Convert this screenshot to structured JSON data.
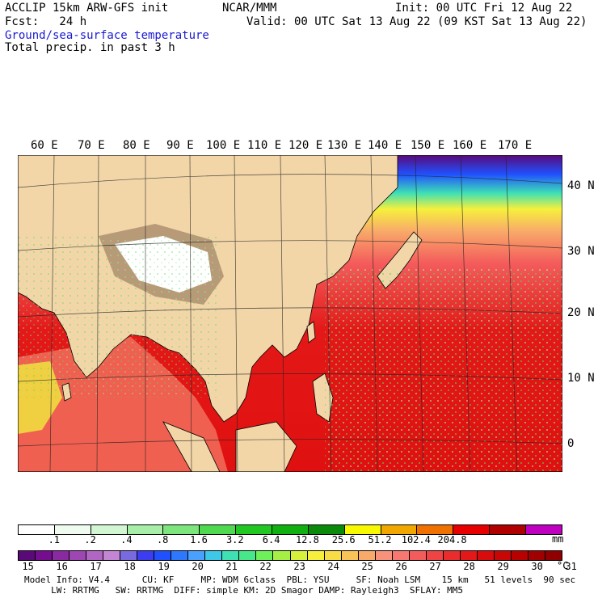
{
  "header": {
    "model": "ACCLIP 15km ARW-GFS init",
    "org": "NCAR/MMM",
    "init": "Init: 00 UTC Fri 12 Aug 22",
    "fcst": "Fcst:   24 h",
    "valid": "Valid: 00 UTC Sat 13 Aug 22 (09 KST Sat 13 Aug 22)",
    "field1": "Ground/sea-surface temperature",
    "field2": "Total precip. in past 3 h"
  },
  "map": {
    "lon_labels": [
      "60 E",
      "70 E",
      "80 E",
      "90 E",
      "100 E",
      "110 E",
      "120 E",
      "130 E",
      "140 E",
      "150 E",
      "160 E",
      "170 E"
    ],
    "lat_labels": [
      "40 N",
      "30 N",
      "20 N",
      "10 N",
      "0"
    ]
  },
  "precip_scale": {
    "ticks": [
      ".1",
      ".2",
      ".4",
      ".8",
      "1.6",
      "3.2",
      "6.4",
      "12.8",
      "25.6",
      "51.2",
      "102.4",
      "204.8"
    ],
    "unit": "mm",
    "colors": [
      "#ffffff",
      "#eefbee",
      "#d2f5d2",
      "#a8eea8",
      "#7ce57c",
      "#4fd94f",
      "#22c822",
      "#10b010",
      "#0a8a0a",
      "#f8f800",
      "#f0a800",
      "#f07000",
      "#e80000",
      "#b00000",
      "#c000c0"
    ]
  },
  "temp_scale": {
    "ticks": [
      "15",
      "16",
      "17",
      "18",
      "19",
      "20",
      "21",
      "22",
      "23",
      "24",
      "25",
      "26",
      "27",
      "28",
      "29",
      "30",
      "31"
    ],
    "unit": "°C",
    "colors": [
      "#5a0a78",
      "#740e8e",
      "#8a2aa0",
      "#9e46b2",
      "#b266c4",
      "#c486d4",
      "#7a6ae0",
      "#3c3cf0",
      "#2050ff",
      "#2e78ff",
      "#4aa0ff",
      "#3cc8e6",
      "#3ee0b4",
      "#46e88a",
      "#6ef05a",
      "#a6f046",
      "#d6f03c",
      "#f6f03c",
      "#f8dc46",
      "#f8c458",
      "#f8aa6a",
      "#f8927a",
      "#f67870",
      "#f45c5c",
      "#f04444",
      "#ea2c2c",
      "#e41818",
      "#d80c0c",
      "#c80606",
      "#b80000",
      "#a00000",
      "#900000"
    ]
  },
  "footer": {
    "line1": "Model Info: V4.4      CU: KF     MP: WDM 6class  PBL: YSU     SF: Noah LSM    15 km   51 levels  90 sec",
    "line2": "     LW: RRTMG   SW: RRTMG  DIFF: simple KM: 2D Smagor DAMP: Rayleigh3  SFLAY: MM5"
  }
}
